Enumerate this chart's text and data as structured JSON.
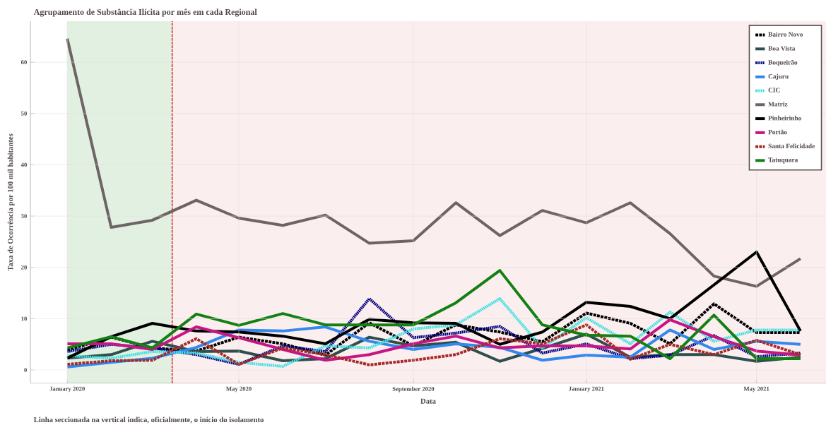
{
  "chart_data": {
    "type": "line",
    "title": "Agrupamento de Substância Ilícita por mês em cada Regional",
    "xlabel": "Data",
    "ylabel": "Taxa de Ocorrência por 100 mil habitantes",
    "annotations": [
      "Linha seccionada na vertical indica, oficialmente, o início do isolamento"
    ],
    "x": [
      "2020-01",
      "2020-02",
      "2020-03",
      "2020-04",
      "2020-05",
      "2020-06",
      "2020-07",
      "2020-08",
      "2020-09",
      "2020-10",
      "2020-11",
      "2020-12",
      "2021-01",
      "2021-02",
      "2021-03",
      "2021-04",
      "2021-05",
      "2021-06"
    ],
    "series": [
      {
        "name": "Bairro Novo",
        "color": "#000000",
        "line_style": "dashed",
        "values": [
          3.9,
          6.4,
          4.3,
          3.7,
          6.4,
          5.1,
          2.9,
          9.2,
          4.7,
          8.8,
          7.4,
          5.5,
          11.1,
          9.1,
          5.1,
          12.9,
          7.3,
          7.3
        ]
      },
      {
        "name": "Boa Vista",
        "color": "#2f4f4f",
        "line_style": "solid",
        "values": [
          2.3,
          3.0,
          5.6,
          3.6,
          3.7,
          1.8,
          2.2,
          6.4,
          4.7,
          5.4,
          1.7,
          4.2,
          7.0,
          2.5,
          3.0,
          3.0,
          1.7,
          2.5
        ]
      },
      {
        "name": "Boqueirão",
        "color": "#000080",
        "line_style": "dotted",
        "values": [
          3.6,
          5.0,
          4.3,
          3.0,
          1.1,
          4.7,
          3.6,
          13.9,
          6.3,
          7.2,
          8.5,
          3.3,
          5.1,
          2.2,
          2.9,
          6.7,
          2.6,
          3.3
        ]
      },
      {
        "name": "Cajuru",
        "color": "#3388ee",
        "line_style": "solid",
        "values": [
          0.6,
          1.5,
          2.3,
          4.4,
          7.8,
          7.6,
          8.4,
          5.6,
          4.0,
          5.1,
          4.4,
          1.9,
          2.9,
          2.5,
          7.8,
          4.0,
          5.6,
          5.0
        ]
      },
      {
        "name": "CIC",
        "color": "#40e0e0",
        "line_style": "dotted",
        "values": [
          2.8,
          2.3,
          3.6,
          3.3,
          1.5,
          0.7,
          4.7,
          4.3,
          8.0,
          8.8,
          13.9,
          4.3,
          10.2,
          5.1,
          11.3,
          5.6,
          7.8,
          7.8
        ]
      },
      {
        "name": "Matriz",
        "color": "#6e6464",
        "line_style": "solid",
        "values": [
          64.6,
          27.8,
          29.2,
          33.1,
          29.6,
          28.2,
          30.2,
          24.7,
          25.2,
          32.6,
          26.2,
          31.1,
          28.7,
          32.6,
          26.6,
          18.3,
          16.3,
          21.7
        ]
      },
      {
        "name": "Pinheirinho",
        "color": "#000000",
        "line_style": "solid",
        "values": [
          2.3,
          6.5,
          9.1,
          7.6,
          7.4,
          6.6,
          5.1,
          9.9,
          9.2,
          9.1,
          5.0,
          7.4,
          13.2,
          12.4,
          10.0,
          16.6,
          23.0,
          7.6
        ]
      },
      {
        "name": "Portão",
        "color": "#c71585",
        "line_style": "solid",
        "values": [
          5.1,
          5.1,
          4.0,
          8.4,
          6.3,
          4.0,
          1.9,
          3.0,
          5.1,
          6.6,
          4.3,
          4.7,
          4.7,
          4.1,
          9.8,
          6.5,
          3.7,
          2.9
        ]
      },
      {
        "name": "Santa Felicidade",
        "color": "#a52a2a",
        "line_style": "dashed",
        "values": [
          1.1,
          1.8,
          1.9,
          6.1,
          1.1,
          4.3,
          3.0,
          1.0,
          1.9,
          3.0,
          6.1,
          5.1,
          8.8,
          2.1,
          5.0,
          3.0,
          5.8,
          3.0
        ]
      },
      {
        "name": "Tatuquara",
        "color": "#138013",
        "line_style": "solid",
        "values": [
          4.3,
          6.5,
          4.3,
          10.9,
          8.7,
          11.0,
          8.8,
          8.8,
          8.8,
          13.1,
          19.4,
          8.8,
          6.8,
          6.6,
          2.2,
          10.7,
          2.2,
          2.2
        ]
      }
    ],
    "xlim": [
      "2019-12-06",
      "2021-06-19"
    ],
    "xticks": [
      {
        "value": "2020-01-01",
        "label": "January 2020"
      },
      {
        "value": "2020-05-01",
        "label": "May 2020"
      },
      {
        "value": "2020-09-01",
        "label": "September 2020"
      },
      {
        "value": "2021-01-01",
        "label": "January 2021"
      },
      {
        "value": "2021-05-01",
        "label": "May 2021"
      }
    ],
    "ylim": [
      -2.6,
      68
    ],
    "yticks": [
      0,
      10,
      20,
      30,
      40,
      50,
      60
    ],
    "grid": true,
    "legend": "top right",
    "ref_lines": [
      {
        "axis": "x",
        "value": "2020-03-15",
        "color": "#e03030",
        "line_style": "dashed"
      }
    ],
    "bands": [
      {
        "axis": "x",
        "from": "2020-01-01",
        "to": "2020-03-15",
        "color": "#e2f0e2"
      },
      {
        "axis": "x",
        "from": "2020-03-15",
        "to": "2021-06-19",
        "color": "#fbeeee"
      }
    ]
  }
}
